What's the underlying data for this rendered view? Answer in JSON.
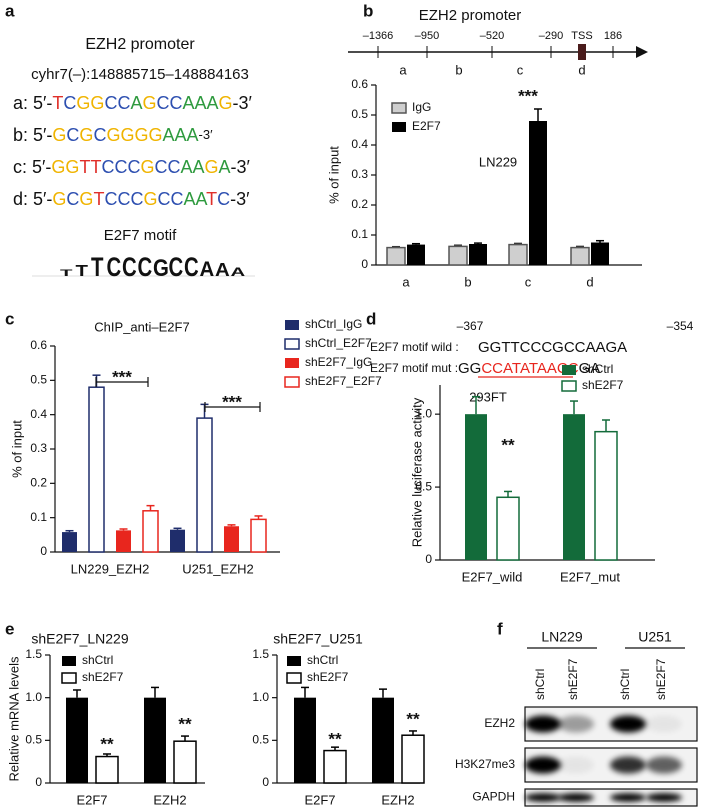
{
  "panel_labels": [
    "a",
    "b",
    "c",
    "d",
    "e",
    "f"
  ],
  "panel_a": {
    "title": "EZH2 promoter",
    "locus": "cyhr7(–):148885715–148884163",
    "sequences": [
      {
        "label": "a:",
        "prefix": "5′-",
        "seq": "TCGGCCAGCCAAAG",
        "suffix": "-3′"
      },
      {
        "label": "b:",
        "prefix": "5′-",
        "seq": "GCGCGGGGAAA",
        "suffix": "-3′"
      },
      {
        "label": "c:",
        "prefix": "5′-",
        "seq": "GGTTCCCGCCAAGA",
        "suffix": "-3′"
      },
      {
        "label": "d:",
        "prefix": "5′-",
        "seq": "GCGTCCCGCCAATC",
        "suffix": "-3′"
      }
    ],
    "motif_title": "E2F7 motif",
    "motif": "TTTCCCGCCAAA"
  },
  "panel_b_map": {
    "title": "EZH2 promoter",
    "positions": [
      "–1366",
      "–950",
      "–520",
      "–290",
      "TSS",
      "186"
    ],
    "regions": [
      "a",
      "b",
      "c",
      "d"
    ]
  },
  "panel_d_seq": {
    "start": "–367",
    "end": "–354",
    "wild_label": "E2F7 motif wild :",
    "wild_seq": "GGTTCCCGCCAAGA",
    "mut_label": "E2F7 motif mut :",
    "mut_seq": [
      "GG",
      "CCATATAACC",
      "GA"
    ]
  },
  "panel_f": {
    "cell_lines": [
      "LN229",
      "U251"
    ],
    "lanes": [
      "shCtrl",
      "shE2F7",
      "shCtrl",
      "shE2F7"
    ],
    "rows": [
      "EZH2",
      "H3K27me3",
      "GAPDH"
    ]
  },
  "chart_data": [
    {
      "type": "bar",
      "title": "LN229",
      "ylabel": "% of input",
      "categories": [
        "a",
        "b",
        "c",
        "d"
      ],
      "series": [
        {
          "name": "IgG",
          "color": "#cfcfcf",
          "fill": "solid",
          "values": [
            0.058,
            0.062,
            0.068,
            0.058
          ],
          "errors": [
            0.003,
            0.004,
            0.004,
            0.004
          ]
        },
        {
          "name": "E2F7",
          "color": "#000000",
          "fill": "solid",
          "values": [
            0.068,
            0.07,
            0.48,
            0.075
          ],
          "errors": [
            0.003,
            0.003,
            0.04,
            0.006
          ]
        }
      ],
      "ylim": [
        0,
        0.6
      ],
      "yticks": [
        0,
        0.1,
        0.2,
        0.3,
        0.4,
        0.5,
        0.6
      ],
      "legend": "top-left",
      "annotations": [
        "***"
      ]
    },
    {
      "type": "bar",
      "title": "ChIP_anti–E2F7",
      "ylabel": "% of input",
      "categories": [
        "LN229_EZH2",
        "U251_EZH2"
      ],
      "series": [
        {
          "name": "shCtrl_IgG",
          "color": "#1f2d6b",
          "fill": "solid",
          "values": [
            0.058,
            0.065
          ],
          "errors": [
            0.004,
            0.004
          ]
        },
        {
          "name": "shCtrl_E2F7",
          "color": "#1f2d6b",
          "fill": "outline",
          "values": [
            0.48,
            0.39
          ],
          "errors": [
            0.035,
            0.04
          ]
        },
        {
          "name": "shE2F7_IgG",
          "color": "#e8261e",
          "fill": "solid",
          "values": [
            0.063,
            0.075
          ],
          "errors": [
            0.004,
            0.004
          ]
        },
        {
          "name": "shE2F7_E2F7",
          "color": "#e8261e",
          "fill": "outline",
          "values": [
            0.12,
            0.095
          ],
          "errors": [
            0.015,
            0.01
          ]
        }
      ],
      "ylim": [
        0,
        0.6
      ],
      "yticks": [
        0,
        0.1,
        0.2,
        0.3,
        0.4,
        0.5,
        0.6
      ],
      "legend": "right",
      "annotations": [
        "***",
        "***"
      ]
    },
    {
      "type": "bar",
      "title": "293FT",
      "ylabel": "Relative luciferase activity",
      "categories": [
        "E2F7_wild",
        "E2F7_mut"
      ],
      "series": [
        {
          "name": "shCtrl",
          "color": "#136b3a",
          "fill": "solid",
          "values": [
            1.0,
            1.0
          ],
          "errors": [
            0.12,
            0.09
          ]
        },
        {
          "name": "shE2F7",
          "color": "#136b3a",
          "fill": "outline",
          "values": [
            0.43,
            0.88
          ],
          "errors": [
            0.04,
            0.08
          ]
        }
      ],
      "ylim": [
        0,
        1.2
      ],
      "yticks": [
        0,
        0.5,
        {
          "value": 1,
          "label": "1.0"
        }
      ],
      "legend": "top-right",
      "annotations": [
        "**"
      ]
    },
    {
      "type": "bar",
      "title": "shE2F7_LN229",
      "ylabel": "Relative mRNA levels",
      "categories": [
        "E2F7",
        "EZH2"
      ],
      "series": [
        {
          "name": "shCtrl",
          "color": "#000000",
          "fill": "solid",
          "values": [
            1.0,
            1.0
          ],
          "errors": [
            0.09,
            0.12
          ]
        },
        {
          "name": "shE2F7",
          "color": "#000000",
          "fill": "outline",
          "values": [
            0.31,
            0.49
          ],
          "errors": [
            0.03,
            0.06
          ]
        }
      ],
      "ylim": [
        0,
        1.5
      ],
      "yticks": [
        0,
        0.5,
        {
          "value": 1,
          "label": "1.0"
        },
        1.5
      ],
      "legend": "top-left",
      "annotations": [
        "**",
        "**"
      ]
    },
    {
      "type": "bar",
      "title": "shE2F7_U251",
      "categories": [
        "E2F7",
        "EZH2"
      ],
      "series": [
        {
          "name": "shCtrl",
          "color": "#000000",
          "fill": "solid",
          "values": [
            1.0,
            1.0
          ],
          "errors": [
            0.12,
            0.1
          ]
        },
        {
          "name": "shE2F7",
          "color": "#000000",
          "fill": "outline",
          "values": [
            0.38,
            0.56
          ],
          "errors": [
            0.04,
            0.05
          ]
        }
      ],
      "ylim": [
        0,
        1.5
      ],
      "yticks": [
        0,
        0.5,
        {
          "value": 1,
          "label": "1.0"
        },
        1.5
      ],
      "legend": "top-left",
      "annotations": [
        "**",
        "**"
      ]
    }
  ]
}
